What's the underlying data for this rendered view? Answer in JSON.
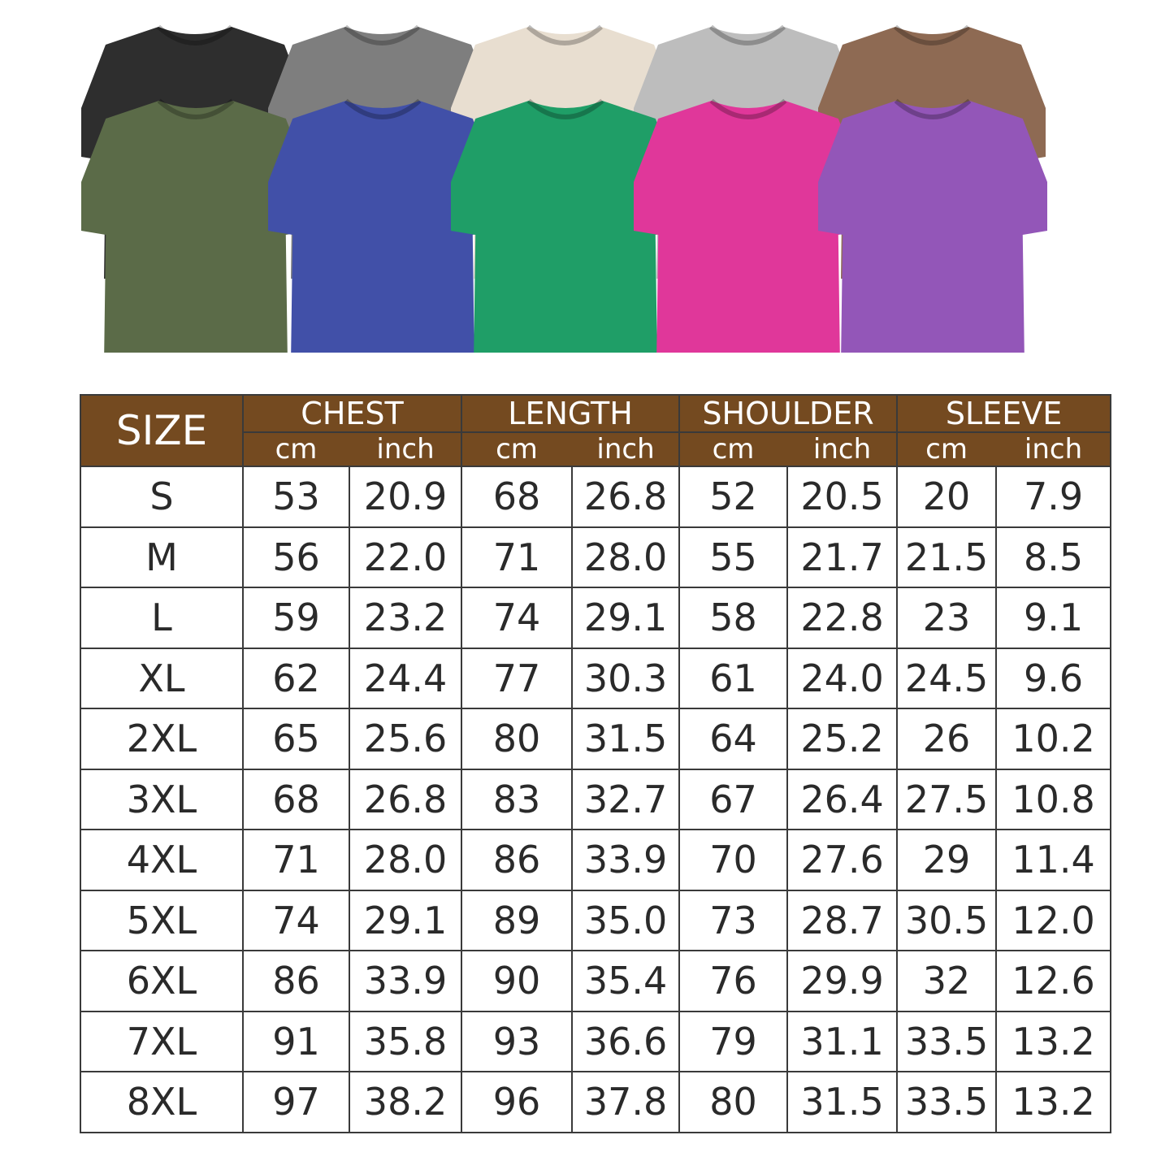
{
  "shirts": {
    "top_row": [
      {
        "color": "black",
        "hex": "#2e2e2e"
      },
      {
        "color": "gray",
        "hex": "#7e7e7e"
      },
      {
        "color": "cream",
        "hex": "#e8ded0"
      },
      {
        "color": "light-gray",
        "hex": "#bdbdbd"
      },
      {
        "color": "brown",
        "hex": "#8e6a53"
      }
    ],
    "bottom_row": [
      {
        "color": "olive",
        "hex": "#5b6b48"
      },
      {
        "color": "blue",
        "hex": "#4150a8"
      },
      {
        "color": "green",
        "hex": "#1f9e67"
      },
      {
        "color": "pink",
        "hex": "#e0379a"
      },
      {
        "color": "purple",
        "hex": "#9356b8"
      }
    ]
  },
  "table": {
    "header_color": "#744a20",
    "size_label": "SIZE",
    "groups": [
      "CHEST",
      "LENGTH",
      "SHOULDER",
      "SLEEVE"
    ],
    "units": [
      "cm",
      "inch"
    ],
    "rows": [
      [
        "S",
        "53",
        "20.9",
        "68",
        "26.8",
        "52",
        "20.5",
        "20",
        "7.9"
      ],
      [
        "M",
        "56",
        "22.0",
        "71",
        "28.0",
        "55",
        "21.7",
        "21.5",
        "8.5"
      ],
      [
        "L",
        "59",
        "23.2",
        "74",
        "29.1",
        "58",
        "22.8",
        "23",
        "9.1"
      ],
      [
        "XL",
        "62",
        "24.4",
        "77",
        "30.3",
        "61",
        "24.0",
        "24.5",
        "9.6"
      ],
      [
        "2XL",
        "65",
        "25.6",
        "80",
        "31.5",
        "64",
        "25.2",
        "26",
        "10.2"
      ],
      [
        "3XL",
        "68",
        "26.8",
        "83",
        "32.7",
        "67",
        "26.4",
        "27.5",
        "10.8"
      ],
      [
        "4XL",
        "71",
        "28.0",
        "86",
        "33.9",
        "70",
        "27.6",
        "29",
        "11.4"
      ],
      [
        "5XL",
        "74",
        "29.1",
        "89",
        "35.0",
        "73",
        "28.7",
        "30.5",
        "12.0"
      ],
      [
        "6XL",
        "86",
        "33.9",
        "90",
        "35.4",
        "76",
        "29.9",
        "32",
        "12.6"
      ],
      [
        "7XL",
        "91",
        "35.8",
        "93",
        "36.6",
        "79",
        "31.1",
        "33.5",
        "13.2"
      ],
      [
        "8XL",
        "97",
        "38.2",
        "96",
        "37.8",
        "80",
        "31.5",
        "33.5",
        "13.2"
      ]
    ]
  }
}
